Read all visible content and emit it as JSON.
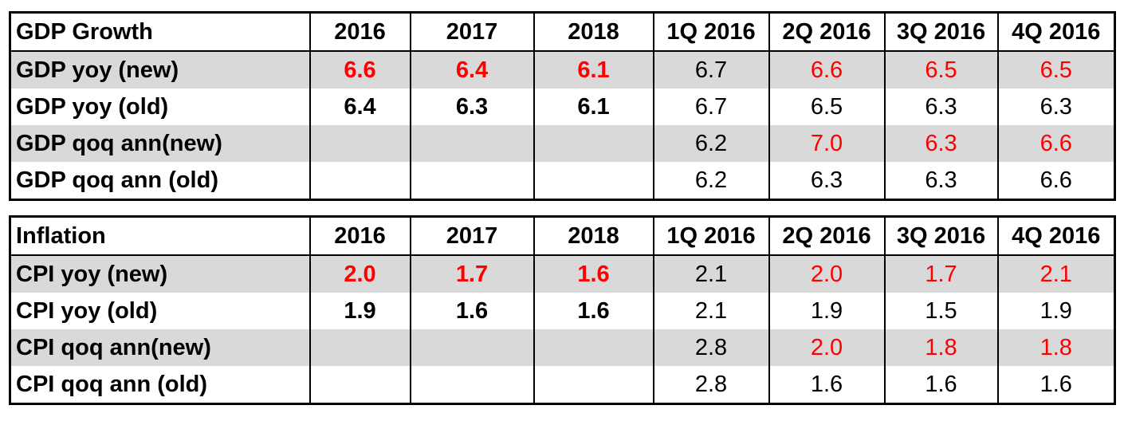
{
  "tables": [
    {
      "header": [
        "GDP Growth",
        "2016",
        "2017",
        "2018",
        "1Q 2016",
        "2Q 2016",
        "3Q 2016",
        "4Q 2016"
      ],
      "rows": [
        {
          "label": "GDP yoy (new)",
          "values": [
            "6.6",
            "6.4",
            "6.1",
            "6.7",
            "6.6",
            "6.5",
            "6.5"
          ],
          "highlight": [
            true,
            true,
            true,
            false,
            true,
            true,
            true
          ],
          "shaded": true
        },
        {
          "label": "GDP yoy (old)",
          "values": [
            "6.4",
            "6.3",
            "6.1",
            "6.7",
            "6.5",
            "6.3",
            "6.3"
          ],
          "highlight": [
            false,
            false,
            false,
            false,
            false,
            false,
            false
          ],
          "shaded": false
        },
        {
          "label": "GDP qoq ann(new)",
          "values": [
            "",
            "",
            "",
            "6.2",
            "7.0",
            "6.3",
            "6.6"
          ],
          "highlight": [
            false,
            false,
            false,
            false,
            true,
            true,
            true
          ],
          "shaded": true
        },
        {
          "label": "GDP qoq ann (old)",
          "values": [
            "",
            "",
            "",
            "6.2",
            "6.3",
            "6.3",
            "6.6"
          ],
          "highlight": [
            false,
            false,
            false,
            false,
            false,
            false,
            false
          ],
          "shaded": false
        }
      ]
    },
    {
      "header": [
        "Inflation",
        "2016",
        "2017",
        "2018",
        "1Q 2016",
        "2Q 2016",
        "3Q 2016",
        "4Q 2016"
      ],
      "rows": [
        {
          "label": "CPI yoy (new)",
          "values": [
            "2.0",
            "1.7",
            "1.6",
            "2.1",
            "2.0",
            "1.7",
            "2.1"
          ],
          "highlight": [
            true,
            true,
            true,
            false,
            true,
            true,
            true
          ],
          "shaded": true
        },
        {
          "label": "CPI yoy (old)",
          "values": [
            "1.9",
            "1.6",
            "1.6",
            "2.1",
            "1.9",
            "1.5",
            "1.9"
          ],
          "highlight": [
            false,
            false,
            false,
            false,
            false,
            false,
            false
          ],
          "shaded": false
        },
        {
          "label": "CPI qoq ann(new)",
          "values": [
            "",
            "",
            "",
            "2.8",
            "2.0",
            "1.8",
            "1.8"
          ],
          "highlight": [
            false,
            false,
            false,
            false,
            true,
            true,
            true
          ],
          "shaded": true
        },
        {
          "label": "CPI qoq ann (old)",
          "values": [
            "",
            "",
            "",
            "2.8",
            "1.6",
            "1.6",
            "1.6"
          ],
          "highlight": [
            false,
            false,
            false,
            false,
            false,
            false,
            false
          ],
          "shaded": false
        }
      ]
    }
  ],
  "colors": {
    "highlight": "#ff0000",
    "shaded_row": "#d9d9d9",
    "border": "#000000"
  }
}
